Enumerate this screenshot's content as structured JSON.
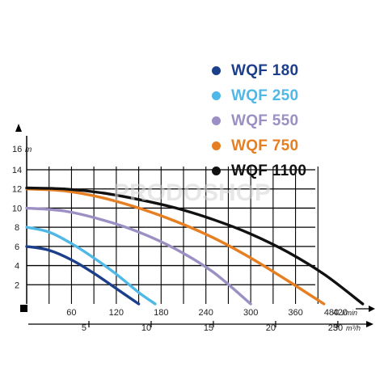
{
  "chart_data": {
    "type": "line",
    "x_unit": "l/min",
    "x2_unit": "m³/h",
    "y_unit": "m",
    "y_axis_max_label": "16",
    "xlim": [
      0,
      480
    ],
    "ylim": [
      0,
      16
    ],
    "x_ticks": [
      60,
      120,
      180,
      240,
      300,
      360,
      420,
      480
    ],
    "x2_ticks": [
      5,
      10,
      15,
      20,
      25,
      30
    ],
    "y_ticks": [
      2,
      4,
      6,
      8,
      10,
      12,
      14
    ],
    "grid": true,
    "legend_position": "top-right",
    "series": [
      {
        "name": "WQF 180",
        "color": "#1c3f8c",
        "x": [
          0,
          30,
          60,
          90,
          120,
          150
        ],
        "y": [
          6,
          5.6,
          4.6,
          3.2,
          1.6,
          0
        ]
      },
      {
        "name": "WQF 250",
        "color": "#4fb8e6",
        "x": [
          0,
          30,
          60,
          90,
          120,
          150,
          172
        ],
        "y": [
          8,
          7.5,
          6.3,
          4.8,
          3.1,
          1.2,
          0
        ]
      },
      {
        "name": "WQF 550",
        "color": "#9b8fc4",
        "x": [
          0,
          50,
          100,
          150,
          200,
          250,
          300
        ],
        "y": [
          10,
          9.7,
          8.8,
          7.5,
          5.7,
          3.3,
          0
        ]
      },
      {
        "name": "WQF 750",
        "color": "#e67e22",
        "x": [
          0,
          50,
          100,
          150,
          200,
          250,
          300,
          350,
          398
        ],
        "y": [
          12,
          11.8,
          11.1,
          10.0,
          8.6,
          6.9,
          4.8,
          2.4,
          0
        ]
      },
      {
        "name": "WQF 1100",
        "color": "#111111",
        "x": [
          0,
          50,
          100,
          150,
          200,
          250,
          300,
          350,
          400,
          450
        ],
        "y": [
          12.1,
          12.0,
          11.6,
          10.9,
          10.0,
          8.8,
          7.3,
          5.4,
          3.0,
          0
        ]
      }
    ]
  },
  "watermark": "PRODOSHOP"
}
